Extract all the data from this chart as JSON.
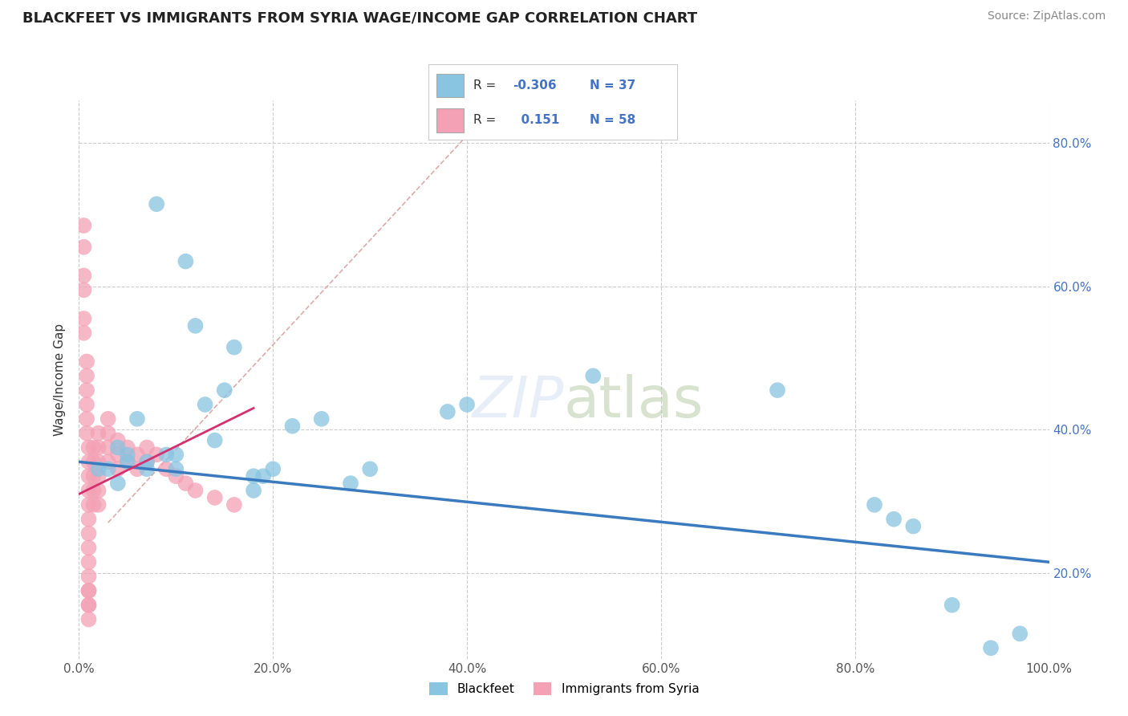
{
  "title": "BLACKFEET VS IMMIGRANTS FROM SYRIA WAGE/INCOME GAP CORRELATION CHART",
  "source": "Source: ZipAtlas.com",
  "ylabel": "Wage/Income Gap",
  "xlim": [
    0.0,
    1.0
  ],
  "ylim": [
    0.08,
    0.86
  ],
  "xticks": [
    0.0,
    0.2,
    0.4,
    0.6,
    0.8,
    1.0
  ],
  "xtick_labels": [
    "0.0%",
    "20.0%",
    "40.0%",
    "60.0%",
    "80.0%",
    "100.0%"
  ],
  "yticks": [
    0.2,
    0.4,
    0.6,
    0.8
  ],
  "ytick_labels": [
    "20.0%",
    "40.0%",
    "60.0%",
    "80.0%"
  ],
  "legend_labels": [
    "Blackfeet",
    "Immigrants from Syria"
  ],
  "blue_color": "#89c4e1",
  "pink_color": "#f4a0b5",
  "blue_line_color": "#3a7abf",
  "pink_line_color": "#d43070",
  "blue_scatter": [
    [
      0.02,
      0.345
    ],
    [
      0.03,
      0.345
    ],
    [
      0.04,
      0.325
    ],
    [
      0.04,
      0.375
    ],
    [
      0.05,
      0.355
    ],
    [
      0.05,
      0.365
    ],
    [
      0.06,
      0.415
    ],
    [
      0.07,
      0.345
    ],
    [
      0.07,
      0.355
    ],
    [
      0.08,
      0.715
    ],
    [
      0.09,
      0.365
    ],
    [
      0.1,
      0.345
    ],
    [
      0.1,
      0.365
    ],
    [
      0.11,
      0.635
    ],
    [
      0.12,
      0.545
    ],
    [
      0.13,
      0.435
    ],
    [
      0.14,
      0.385
    ],
    [
      0.15,
      0.455
    ],
    [
      0.16,
      0.515
    ],
    [
      0.18,
      0.315
    ],
    [
      0.18,
      0.335
    ],
    [
      0.19,
      0.335
    ],
    [
      0.2,
      0.345
    ],
    [
      0.22,
      0.405
    ],
    [
      0.25,
      0.415
    ],
    [
      0.28,
      0.325
    ],
    [
      0.3,
      0.345
    ],
    [
      0.38,
      0.425
    ],
    [
      0.4,
      0.435
    ],
    [
      0.53,
      0.475
    ],
    [
      0.72,
      0.455
    ],
    [
      0.82,
      0.295
    ],
    [
      0.84,
      0.275
    ],
    [
      0.86,
      0.265
    ],
    [
      0.9,
      0.155
    ],
    [
      0.94,
      0.095
    ],
    [
      0.97,
      0.115
    ]
  ],
  "pink_scatter": [
    [
      0.005,
      0.685
    ],
    [
      0.005,
      0.655
    ],
    [
      0.005,
      0.615
    ],
    [
      0.005,
      0.595
    ],
    [
      0.005,
      0.555
    ],
    [
      0.005,
      0.535
    ],
    [
      0.008,
      0.495
    ],
    [
      0.008,
      0.475
    ],
    [
      0.008,
      0.455
    ],
    [
      0.008,
      0.435
    ],
    [
      0.008,
      0.415
    ],
    [
      0.008,
      0.395
    ],
    [
      0.01,
      0.375
    ],
    [
      0.01,
      0.355
    ],
    [
      0.01,
      0.335
    ],
    [
      0.01,
      0.315
    ],
    [
      0.01,
      0.295
    ],
    [
      0.01,
      0.275
    ],
    [
      0.01,
      0.255
    ],
    [
      0.01,
      0.235
    ],
    [
      0.01,
      0.215
    ],
    [
      0.01,
      0.195
    ],
    [
      0.01,
      0.175
    ],
    [
      0.01,
      0.155
    ],
    [
      0.01,
      0.135
    ],
    [
      0.015,
      0.375
    ],
    [
      0.015,
      0.355
    ],
    [
      0.015,
      0.335
    ],
    [
      0.015,
      0.315
    ],
    [
      0.015,
      0.295
    ],
    [
      0.02,
      0.395
    ],
    [
      0.02,
      0.375
    ],
    [
      0.02,
      0.355
    ],
    [
      0.02,
      0.335
    ],
    [
      0.02,
      0.315
    ],
    [
      0.02,
      0.295
    ],
    [
      0.03,
      0.415
    ],
    [
      0.03,
      0.395
    ],
    [
      0.03,
      0.375
    ],
    [
      0.03,
      0.355
    ],
    [
      0.04,
      0.385
    ],
    [
      0.04,
      0.365
    ],
    [
      0.04,
      0.345
    ],
    [
      0.05,
      0.375
    ],
    [
      0.05,
      0.355
    ],
    [
      0.06,
      0.365
    ],
    [
      0.06,
      0.345
    ],
    [
      0.07,
      0.375
    ],
    [
      0.07,
      0.355
    ],
    [
      0.08,
      0.365
    ],
    [
      0.09,
      0.345
    ],
    [
      0.1,
      0.335
    ],
    [
      0.11,
      0.325
    ],
    [
      0.12,
      0.315
    ],
    [
      0.14,
      0.305
    ],
    [
      0.16,
      0.295
    ],
    [
      0.01,
      0.175
    ],
    [
      0.01,
      0.155
    ]
  ],
  "background_color": "#ffffff",
  "grid_color": "#cccccc",
  "watermark": "ZIPatlas"
}
